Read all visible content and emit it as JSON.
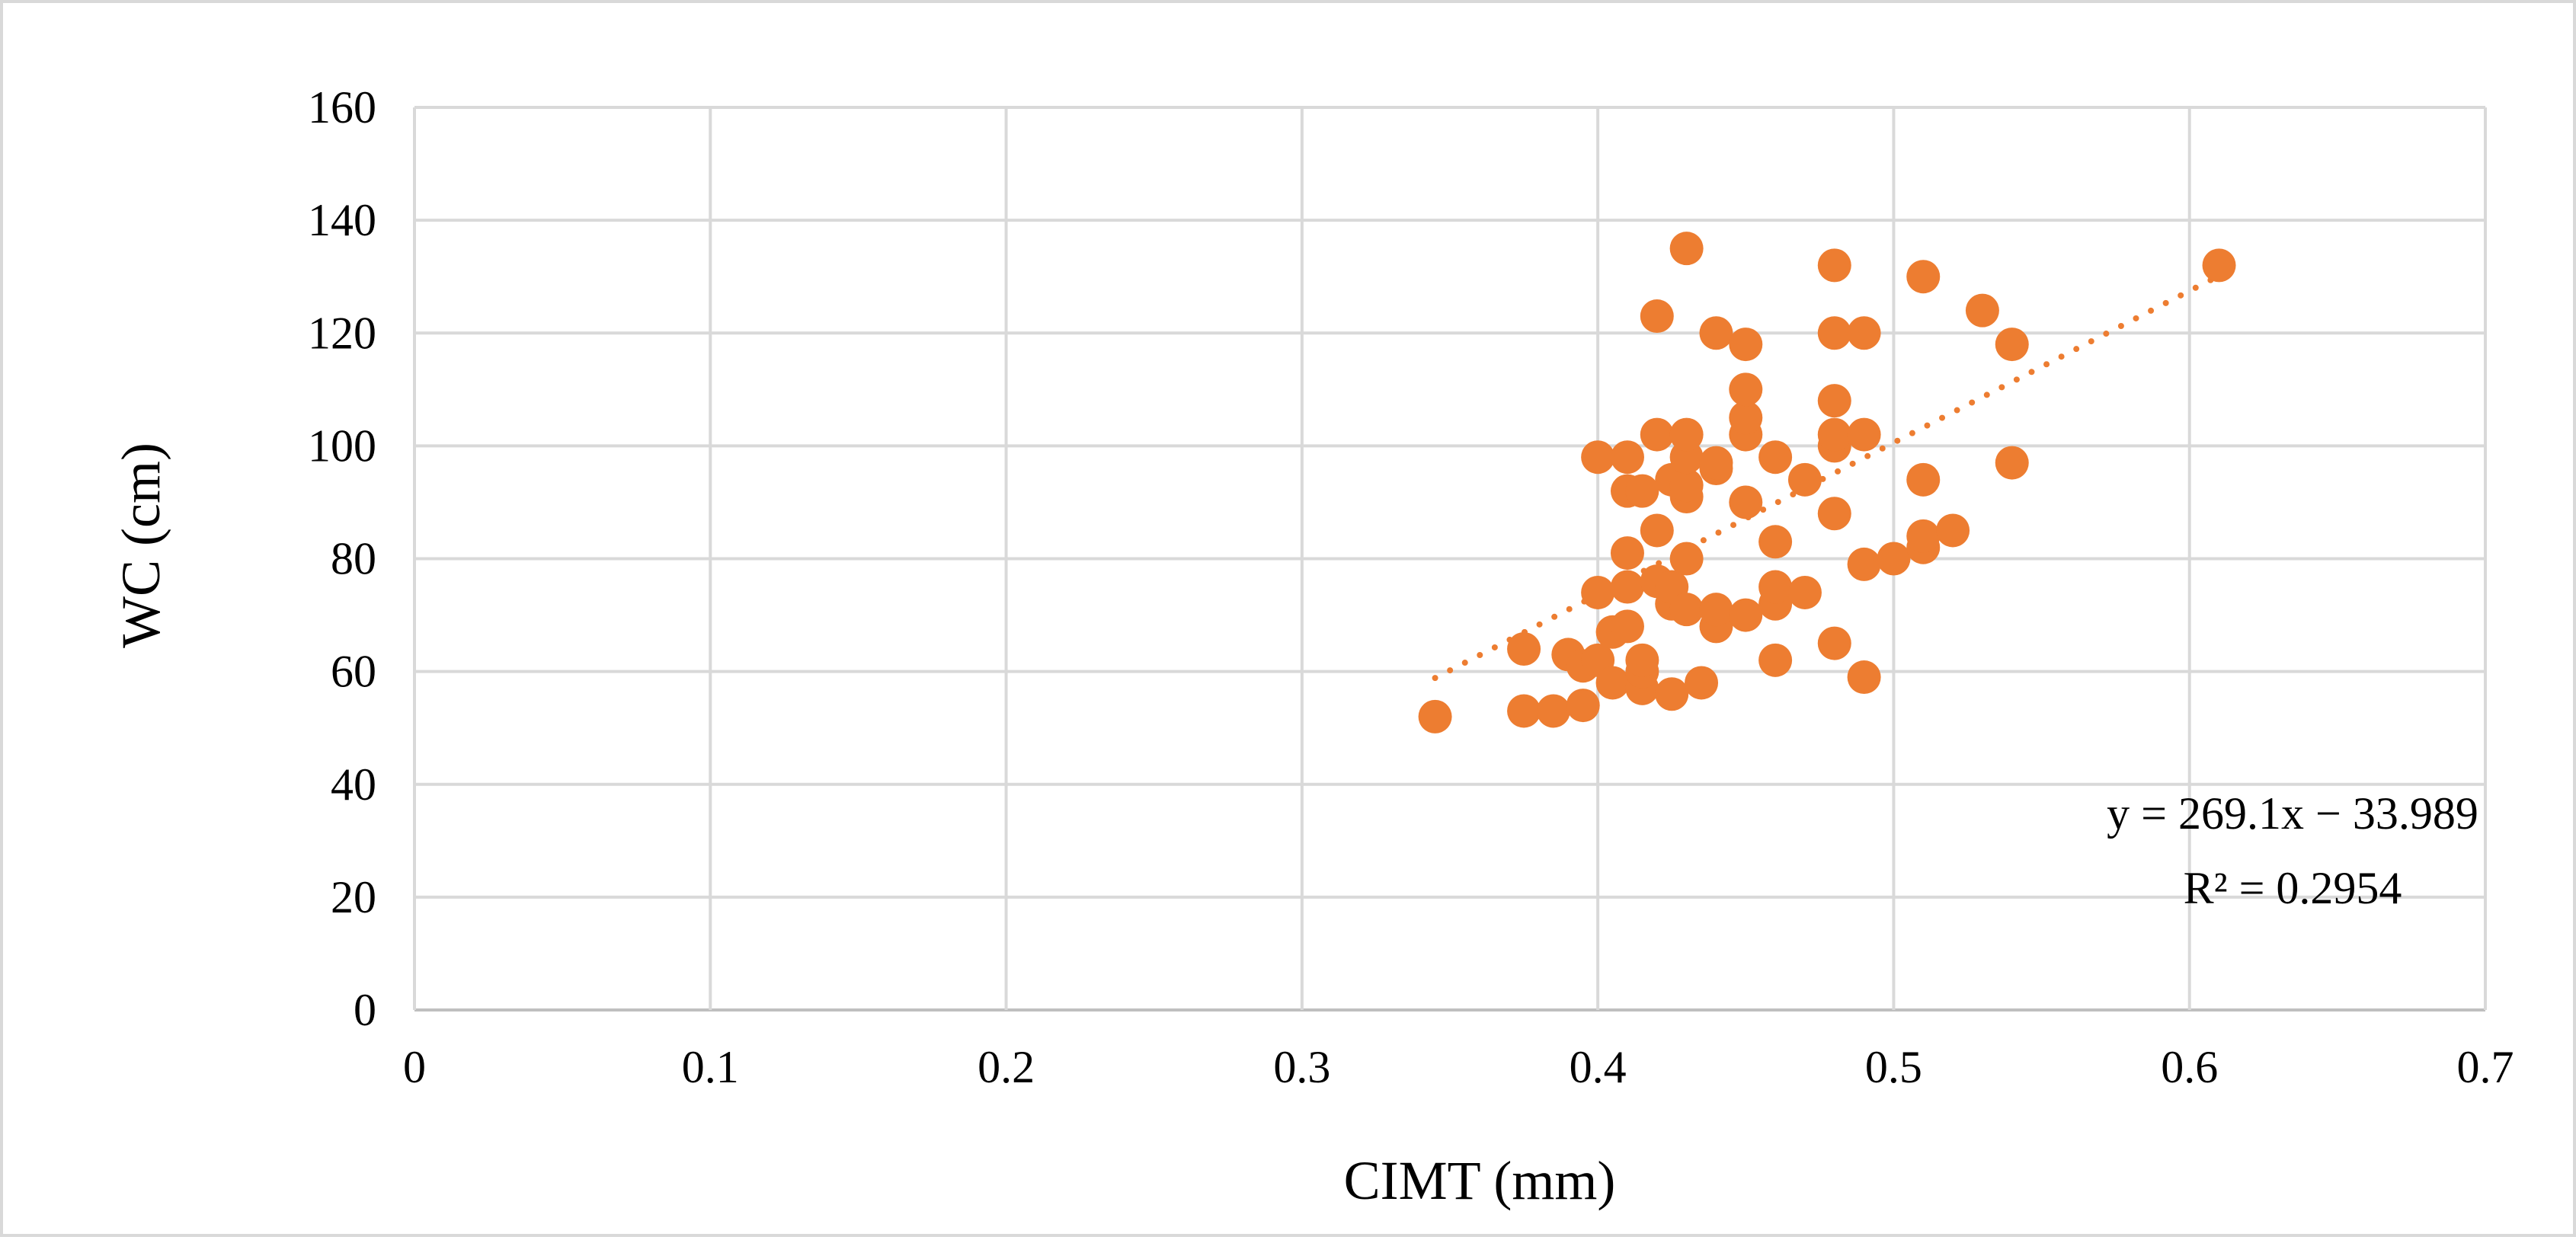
{
  "chart_data": {
    "type": "scatter",
    "title": "",
    "xlabel": "CIMT (mm)",
    "ylabel": "WC (cm)",
    "xlim": [
      0,
      0.7
    ],
    "ylim": [
      0,
      160
    ],
    "x_ticks": [
      "0",
      "0.1",
      "0.2",
      "0.3",
      "0.4",
      "0.5",
      "0.6",
      "0.7"
    ],
    "y_ticks": [
      "0",
      "20",
      "40",
      "60",
      "80",
      "100",
      "120",
      "140",
      "160"
    ],
    "grid": true,
    "legend": "none",
    "series": [
      {
        "color": "#ed7d31",
        "points": [
          [
            0.345,
            52
          ],
          [
            0.375,
            53
          ],
          [
            0.375,
            64
          ],
          [
            0.385,
            53
          ],
          [
            0.39,
            63
          ],
          [
            0.395,
            54
          ],
          [
            0.395,
            61
          ],
          [
            0.4,
            62
          ],
          [
            0.4,
            74
          ],
          [
            0.4,
            98
          ],
          [
            0.405,
            58
          ],
          [
            0.405,
            67
          ],
          [
            0.41,
            68
          ],
          [
            0.41,
            75
          ],
          [
            0.41,
            81
          ],
          [
            0.41,
            92
          ],
          [
            0.41,
            98
          ],
          [
            0.415,
            57
          ],
          [
            0.415,
            60
          ],
          [
            0.415,
            62
          ],
          [
            0.415,
            92
          ],
          [
            0.42,
            76
          ],
          [
            0.42,
            85
          ],
          [
            0.42,
            102
          ],
          [
            0.42,
            123
          ],
          [
            0.425,
            56
          ],
          [
            0.425,
            72
          ],
          [
            0.425,
            75
          ],
          [
            0.425,
            94
          ],
          [
            0.43,
            71
          ],
          [
            0.43,
            80
          ],
          [
            0.43,
            91
          ],
          [
            0.43,
            93
          ],
          [
            0.43,
            98
          ],
          [
            0.43,
            102
          ],
          [
            0.43,
            135
          ],
          [
            0.435,
            58
          ],
          [
            0.44,
            68
          ],
          [
            0.44,
            71
          ],
          [
            0.44,
            96
          ],
          [
            0.44,
            97
          ],
          [
            0.44,
            120
          ],
          [
            0.45,
            70
          ],
          [
            0.45,
            90
          ],
          [
            0.45,
            102
          ],
          [
            0.45,
            105
          ],
          [
            0.45,
            110
          ],
          [
            0.45,
            118
          ],
          [
            0.46,
            62
          ],
          [
            0.46,
            72
          ],
          [
            0.46,
            75
          ],
          [
            0.46,
            83
          ],
          [
            0.46,
            98
          ],
          [
            0.47,
            74
          ],
          [
            0.47,
            94
          ],
          [
            0.48,
            65
          ],
          [
            0.48,
            88
          ],
          [
            0.48,
            100
          ],
          [
            0.48,
            102
          ],
          [
            0.48,
            108
          ],
          [
            0.48,
            120
          ],
          [
            0.48,
            132
          ],
          [
            0.49,
            59
          ],
          [
            0.49,
            79
          ],
          [
            0.49,
            102
          ],
          [
            0.49,
            120
          ],
          [
            0.5,
            80
          ],
          [
            0.51,
            82
          ],
          [
            0.51,
            84
          ],
          [
            0.51,
            94
          ],
          [
            0.51,
            130
          ],
          [
            0.52,
            85
          ],
          [
            0.53,
            124
          ],
          [
            0.54,
            97
          ],
          [
            0.54,
            118
          ],
          [
            0.61,
            132
          ]
        ]
      }
    ],
    "trendline": {
      "type": "linear",
      "slope": 269.1,
      "intercept": -33.989,
      "x_range": [
        0.345,
        0.61
      ],
      "style": "dotted",
      "color": "#ed7d31",
      "equation_label": "y = 269.1x − 33.989",
      "r2_label": "R² = 0.2954"
    }
  }
}
